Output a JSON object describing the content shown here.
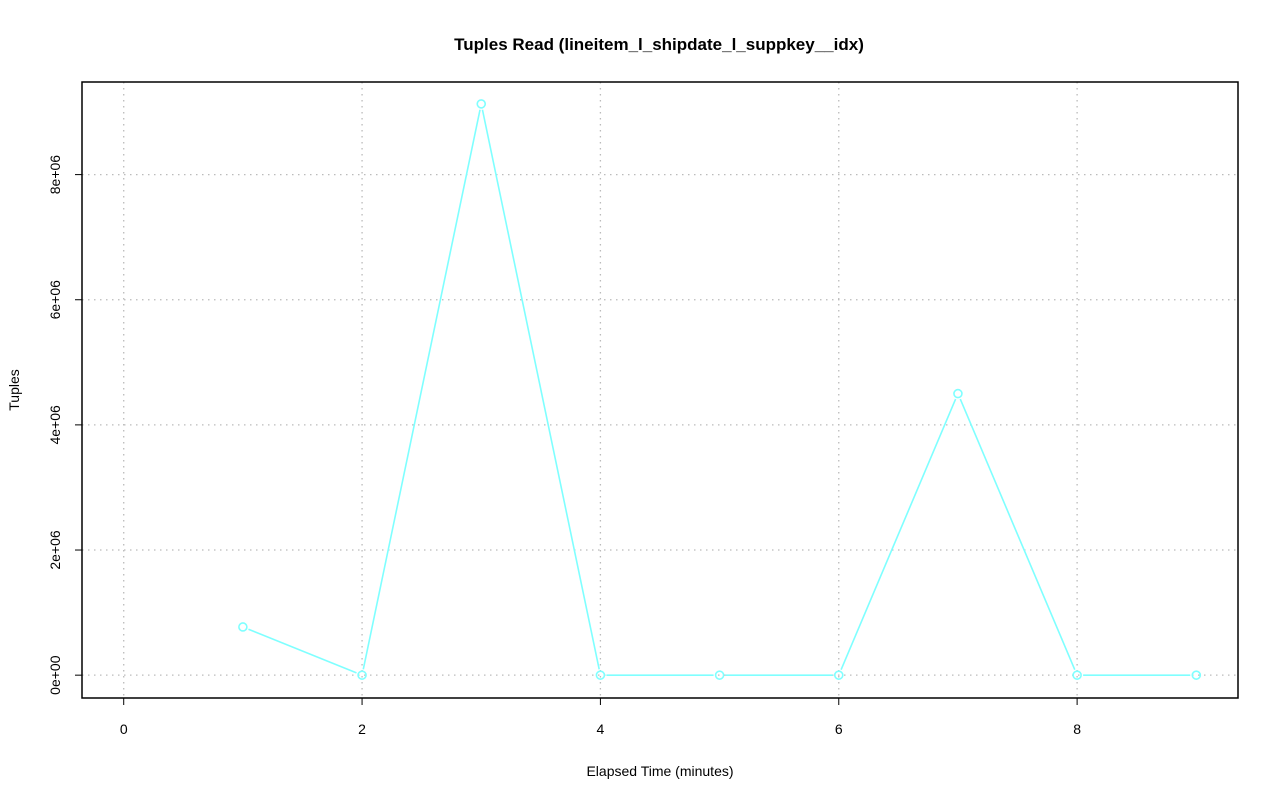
{
  "chart_data": {
    "type": "line",
    "title": "Tuples Read (lineitem_l_shipdate_l_suppkey__idx)",
    "xlabel": "Elapsed Time (minutes)",
    "ylabel": "Tuples",
    "x": [
      1,
      2,
      3,
      4,
      5,
      6,
      7,
      8,
      9
    ],
    "series": [
      {
        "values": [
          770000,
          0,
          9130000,
          0,
          0,
          0,
          4500000,
          0,
          0
        ],
        "color": "#7fffff"
      }
    ],
    "xlim": [
      -0.35,
      9.35
    ],
    "ylim": [
      -365000,
      9480000
    ],
    "xticks": [
      0,
      2,
      4,
      6,
      8
    ],
    "xtick_labels": [
      "0",
      "2",
      "4",
      "6",
      "8"
    ],
    "yticks": [
      0,
      2000000,
      4000000,
      6000000,
      8000000
    ],
    "ytick_labels": [
      "0e+00",
      "2e+06",
      "4e+06",
      "6e+06",
      "8e+06"
    ],
    "grid": true,
    "markers": "open-circle"
  }
}
